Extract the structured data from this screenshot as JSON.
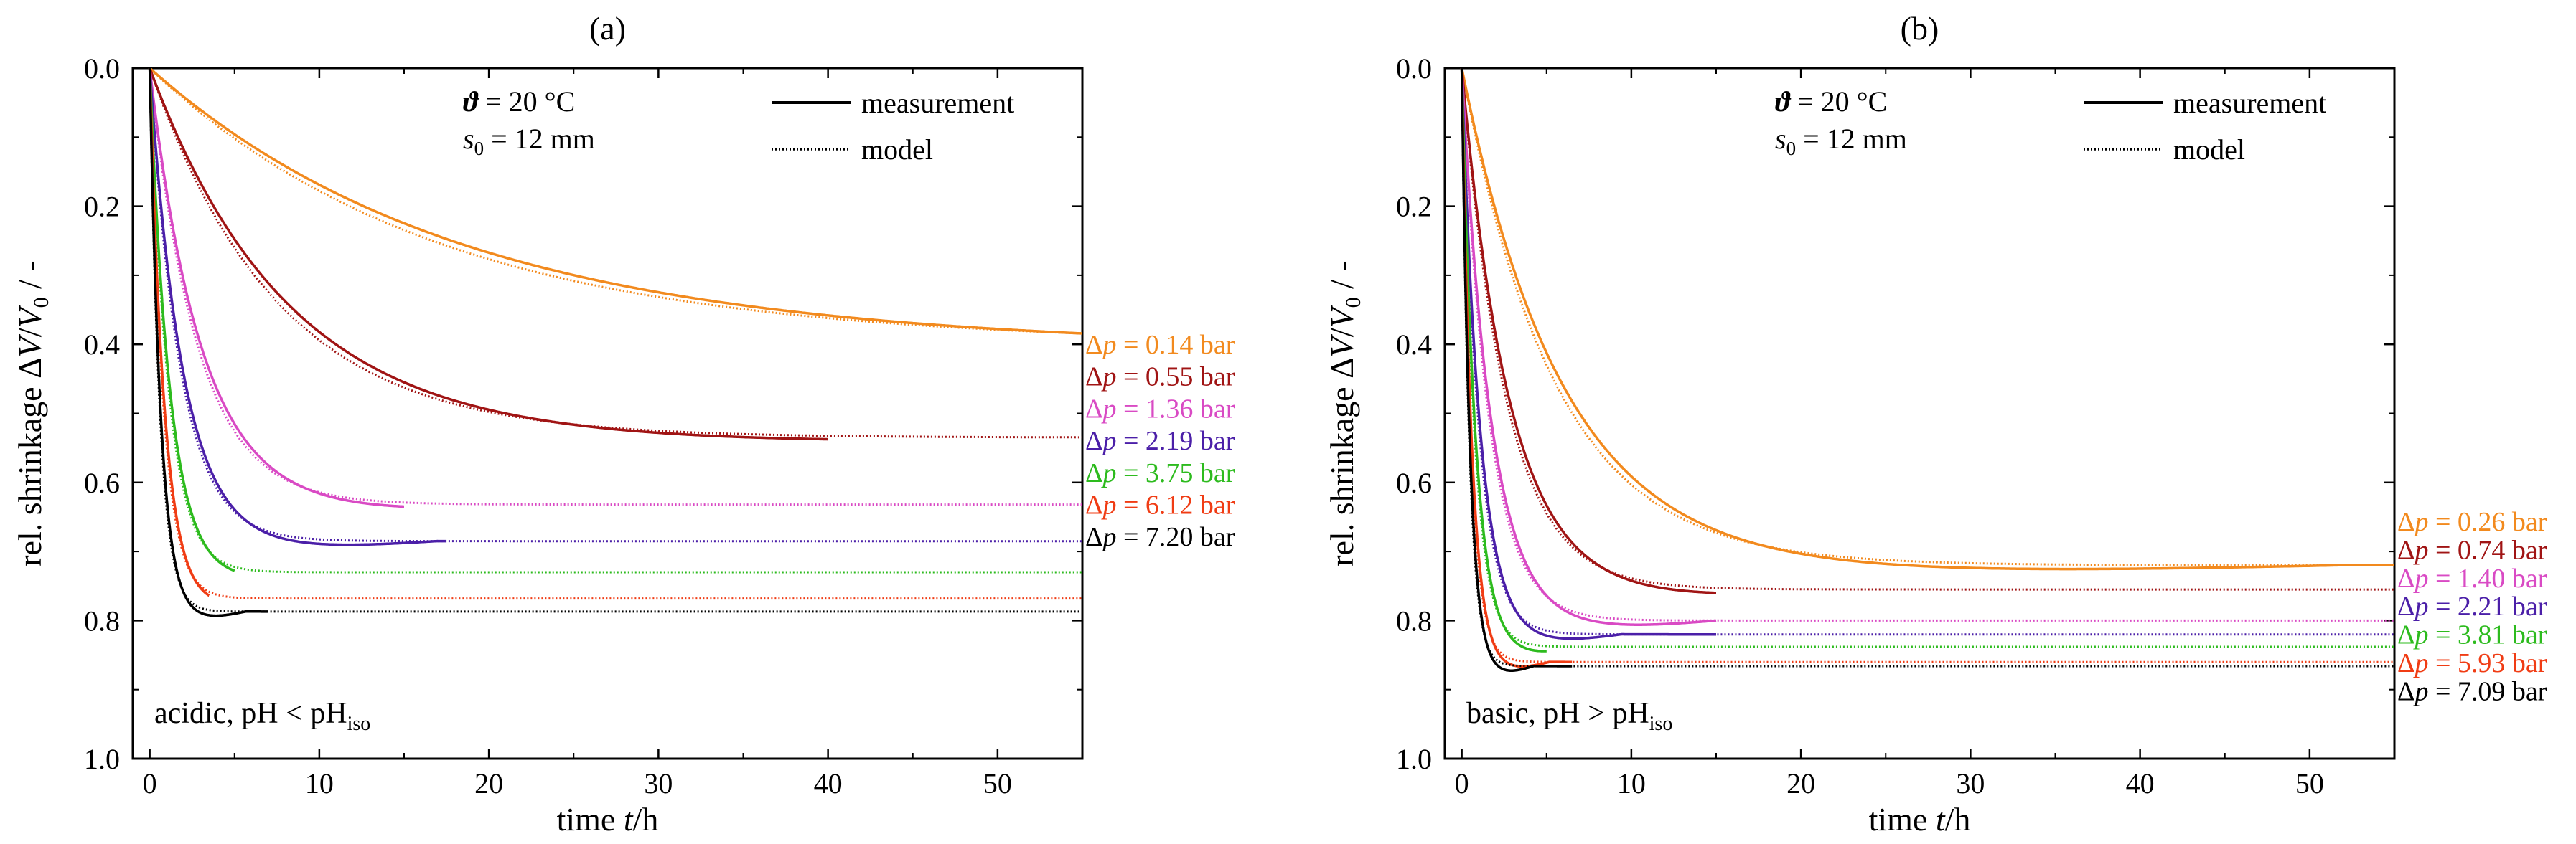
{
  "chart_data": [
    {
      "type": "line",
      "panel_label": "(a)",
      "xlabel": "time t/h",
      "ylabel": "rel. shrinkage ΔV/V₀ / -",
      "xlim": [
        -1,
        55
      ],
      "ylim": [
        0.0,
        1.0
      ],
      "y_inverted": true,
      "xticks": [
        0,
        10,
        20,
        30,
        40,
        50
      ],
      "yticks": [
        0.0,
        0.2,
        0.4,
        0.6,
        0.8,
        1.0
      ],
      "conditions": [
        "ϑ = 20 °C",
        "s₀ = 12 mm"
      ],
      "legend": [
        {
          "label": "measurement",
          "style": "solid"
        },
        {
          "label": "model",
          "style": "dotted"
        }
      ],
      "annotation": {
        "text": "acidic, pH < pH",
        "subscript": "iso"
      },
      "series": [
        {
          "name": "Δp = 0.14 bar",
          "color": "#F28A1E",
          "eq": 0.4,
          "tau": 17.0,
          "meas_end": 55
        },
        {
          "name": "Δp = 0.55 bar",
          "color": "#A01414",
          "eq": 0.535,
          "tau": 7.5,
          "meas_end": 40
        },
        {
          "name": "Δp = 1.36 bar",
          "color": "#D94AC4",
          "eq": 0.632,
          "tau": 2.8,
          "meas_end": 15
        },
        {
          "name": "Δp = 2.19 bar",
          "color": "#4B1FA8",
          "eq": 0.685,
          "tau": 1.8,
          "meas_end": 17.5
        },
        {
          "name": "Δp = 3.75 bar",
          "color": "#2DBB1E",
          "eq": 0.73,
          "tau": 1.1,
          "meas_end": 5
        },
        {
          "name": "Δp = 6.12 bar",
          "color": "#F03C14",
          "eq": 0.768,
          "tau": 0.8,
          "meas_end": 3.5
        },
        {
          "name": "Δp = 7.20 bar",
          "color": "#000000",
          "eq": 0.787,
          "tau": 0.6,
          "meas_end": 7
        }
      ]
    },
    {
      "type": "line",
      "panel_label": "(b)",
      "xlabel": "time t/h",
      "ylabel": "rel. shrinkage ΔV/V₀ / -",
      "xlim": [
        -1,
        55
      ],
      "ylim": [
        0.0,
        1.0
      ],
      "y_inverted": true,
      "xticks": [
        0,
        10,
        20,
        30,
        40,
        50
      ],
      "yticks": [
        0.0,
        0.2,
        0.4,
        0.6,
        0.8,
        1.0
      ],
      "conditions": [
        "ϑ = 20 °C",
        "s₀ = 12 mm"
      ],
      "legend": [
        {
          "label": "measurement",
          "style": "solid"
        },
        {
          "label": "model",
          "style": "dotted"
        }
      ],
      "annotation": {
        "text": "basic, pH > pH",
        "subscript": "iso"
      },
      "series": [
        {
          "name": "Δp = 0.26 bar",
          "color": "#F28A1E",
          "eq": 0.72,
          "tau": 5.5,
          "meas_end": 55
        },
        {
          "name": "Δp = 0.74 bar",
          "color": "#A01414",
          "eq": 0.755,
          "tau": 2.6,
          "meas_end": 15
        },
        {
          "name": "Δp = 1.40 bar",
          "color": "#D94AC4",
          "eq": 0.8,
          "tau": 1.6,
          "meas_end": 15
        },
        {
          "name": "Δp = 2.21 bar",
          "color": "#4B1FA8",
          "eq": 0.82,
          "tau": 1.0,
          "meas_end": 15
        },
        {
          "name": "Δp = 3.81 bar",
          "color": "#2DBB1E",
          "eq": 0.838,
          "tau": 0.75,
          "meas_end": 5
        },
        {
          "name": "Δp = 5.93 bar",
          "color": "#F03C14",
          "eq": 0.86,
          "tau": 0.55,
          "meas_end": 6.5
        },
        {
          "name": "Δp = 7.09 bar",
          "color": "#000000",
          "eq": 0.866,
          "tau": 0.45,
          "meas_end": 6.5
        }
      ]
    }
  ]
}
